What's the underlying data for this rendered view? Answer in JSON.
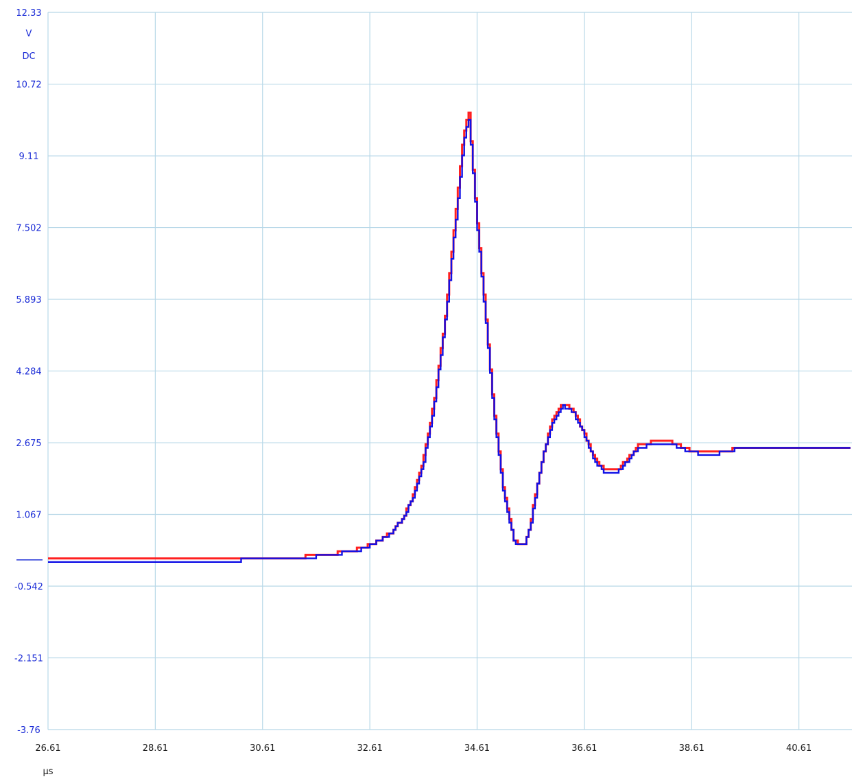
{
  "chart_data": {
    "type": "line",
    "y_unit": "V",
    "coupling": "DC",
    "x_unit": "µs",
    "y_ticks": [
      "12.33",
      "10.72",
      "9.11",
      "7.502",
      "5.893",
      "4.284",
      "2.675",
      "1.067",
      "-0.542",
      "-2.151",
      "-3.76"
    ],
    "x_ticks": [
      "26.61",
      "28.61",
      "30.61",
      "32.61",
      "34.61",
      "36.61",
      "38.61",
      "40.61"
    ],
    "xlim": [
      26.61,
      41.6
    ],
    "ylim": [
      -3.76,
      12.33
    ],
    "grid": true,
    "colors": {
      "grid": "#b8d8e8",
      "text": "#1a2bd6",
      "series_a": "#ff2020",
      "series_b": "#1010e6"
    },
    "series": [
      {
        "color": "#ff2020",
        "x": [
          26.61,
          29.8,
          30.3,
          31.0,
          31.6,
          32.0,
          32.5,
          32.8,
          33.0,
          33.2,
          33.4,
          33.6,
          33.8,
          34.0,
          34.2,
          34.35,
          34.45,
          34.6,
          34.75,
          34.9,
          35.1,
          35.3,
          35.5,
          35.6,
          35.7,
          35.85,
          36.0,
          36.2,
          36.4,
          36.6,
          36.8,
          37.0,
          37.2,
          37.4,
          37.6,
          37.9,
          38.2,
          38.6,
          38.9,
          39.2,
          39.6,
          40.0,
          40.5,
          41.0,
          41.6
        ],
        "y": [
          0.04,
          0.05,
          0.1,
          0.1,
          0.13,
          0.2,
          0.32,
          0.5,
          0.66,
          0.95,
          1.45,
          2.3,
          3.6,
          5.4,
          7.8,
          9.6,
          10.1,
          7.7,
          5.7,
          3.6,
          1.6,
          0.45,
          0.42,
          0.9,
          1.6,
          2.5,
          3.15,
          3.55,
          3.4,
          2.9,
          2.3,
          2.05,
          2.05,
          2.3,
          2.6,
          2.7,
          2.7,
          2.5,
          2.44,
          2.48,
          2.58,
          2.56,
          2.55,
          2.56,
          2.56
        ]
      },
      {
        "color": "#1010e6",
        "x": [
          26.61,
          29.8,
          30.3,
          31.0,
          31.6,
          32.0,
          32.5,
          32.8,
          33.0,
          33.2,
          33.4,
          33.6,
          33.8,
          34.0,
          34.2,
          34.35,
          34.45,
          34.6,
          34.75,
          34.9,
          35.1,
          35.3,
          35.5,
          35.6,
          35.7,
          35.85,
          36.0,
          36.2,
          36.4,
          36.6,
          36.8,
          37.0,
          37.2,
          37.4,
          37.6,
          37.9,
          38.2,
          38.6,
          38.9,
          39.2,
          39.6,
          40.0,
          40.5,
          41.0,
          41.6
        ],
        "y": [
          0.0,
          0.0,
          0.05,
          0.06,
          0.12,
          0.18,
          0.3,
          0.5,
          0.64,
          0.95,
          1.4,
          2.2,
          3.5,
          5.3,
          7.6,
          9.4,
          9.95,
          7.6,
          5.6,
          3.5,
          1.5,
          0.42,
          0.4,
          0.85,
          1.55,
          2.45,
          3.1,
          3.5,
          3.35,
          2.85,
          2.25,
          2.0,
          2.0,
          2.25,
          2.55,
          2.65,
          2.65,
          2.45,
          2.42,
          2.45,
          2.6,
          2.54,
          2.53,
          2.53,
          2.53
        ]
      }
    ]
  }
}
